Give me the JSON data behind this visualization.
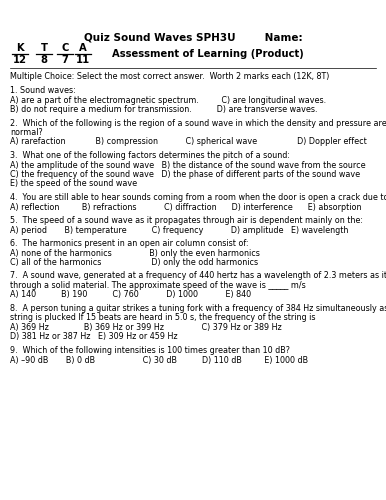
{
  "bg_color": "#ffffff",
  "text_color": "#000000",
  "title": "Quiz Sound Waves SPH3U        Name:",
  "grade_label": "Assessment of Learning (Product)",
  "letters": [
    "K",
    "T",
    "C",
    "A"
  ],
  "nums": [
    "12",
    "8",
    "7",
    "11"
  ],
  "mc_header": "Multiple Choice: Select the most correct answer.  Worth 2 marks each (12K, 8T)",
  "content": [
    [
      "1. Sound waves:"
    ],
    [
      "A) are a part of the electromagnetic spectrum.         C) are longitudinal waves."
    ],
    [
      "B) do not require a medium for transmission.          D) are transverse waves."
    ],
    [
      ""
    ],
    [
      "2.  Which of the following is the region of a sound wave in which the density and pressure are less than"
    ],
    [
      "normal?"
    ],
    [
      "A) rarefaction            B) compression           C) spherical wave                D) Doppler effect"
    ],
    [
      ""
    ],
    [
      "3.  What one of the following factors determines the pitch of a sound:"
    ],
    [
      "A) the amplitude of the sound wave   B) the distance of the sound wave from the source"
    ],
    [
      "C) the frequency of the sound wave   D) the phase of different parts of the sound wave"
    ],
    [
      "E) the speed of the sound wave"
    ],
    [
      ""
    ],
    [
      "4.  You are still able to hear sounds coming from a room when the door is open a crack due to:"
    ],
    [
      "A) reflection         B) refractions           C) diffraction      D) interference      E) absorption"
    ],
    [
      ""
    ],
    [
      "5.  The speed of a sound wave as it propagates through air is dependent mainly on the:"
    ],
    [
      "A) period       B) temperature          C) frequency           D) amplitude   E) wavelength"
    ],
    [
      ""
    ],
    [
      "6.  The harmonics present in an open air column consist of:"
    ],
    [
      "A) none of the harmonics               B) only the even harmonics"
    ],
    [
      "C) all of the harmonics                    D) only the odd harmonics"
    ],
    [
      ""
    ],
    [
      "7.  A sound wave, generated at a frequency of 440 hertz has a wavelength of 2.3 meters as it travels"
    ],
    [
      "through a solid material. The approximate speed of the wave is _____ m/s"
    ],
    [
      "A) 140          B) 190          C) 760           D) 1000           E) 840"
    ],
    [
      ""
    ],
    [
      "8.  A person tuning a guitar strikes a tuning fork with a frequency of 384 Hz simultaneously as a guitar"
    ],
    [
      "string is plucked If 15 beats are heard in 5.0 s, the frequency of the string is"
    ],
    [
      "A) 369 Hz              B) 369 Hz or 399 Hz               C) 379 Hz or 389 Hz"
    ],
    [
      "D) 381 Hz or 387 Hz   E) 309 Hz or 459 Hz"
    ],
    [
      ""
    ],
    [
      "9.  Which of the following intensities is 100 times greater than 10 dB?"
    ],
    [
      "A) –90 dB       B) 0 dB                   C) 30 dB          D) 110 dB         E) 1000 dB"
    ]
  ]
}
